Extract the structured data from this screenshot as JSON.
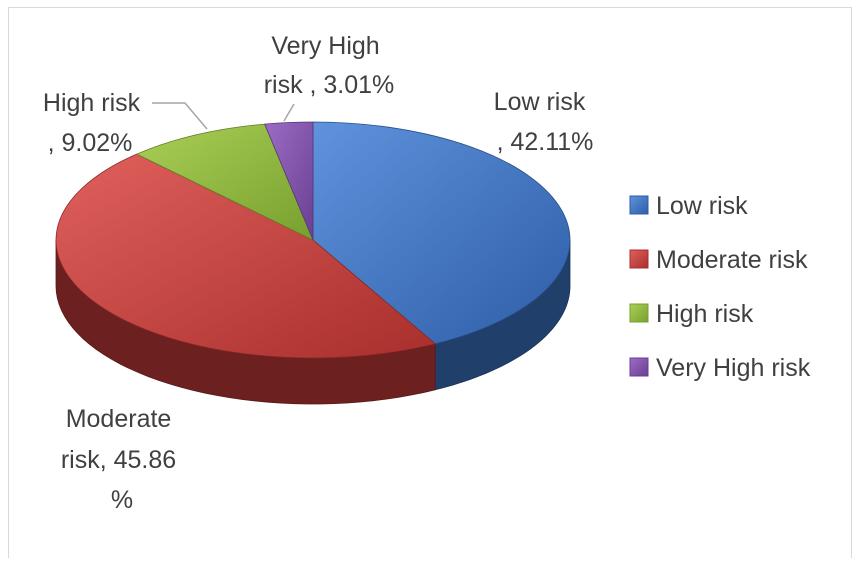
{
  "chart_data": {
    "type": "pie",
    "style": "3d",
    "categories": [
      "Low risk",
      "Moderate risk",
      "High risk",
      "Very High risk"
    ],
    "values": [
      42.11,
      45.86,
      9.02,
      3.01
    ],
    "unit": "%",
    "colors": [
      "#3a72c2",
      "#c43b38",
      "#8db63b",
      "#7d4fa5"
    ],
    "data_labels": [
      [
        "Low risk",
        ", 42.11%"
      ],
      [
        "Moderate",
        "risk, 45.86",
        "%"
      ],
      [
        "High risk",
        ", 9.02%"
      ],
      [
        "Very High",
        "risk , 3.01%"
      ]
    ],
    "legend": {
      "position": "right",
      "entries": [
        "Low risk",
        "Moderate risk",
        "High risk",
        "Very High risk"
      ]
    }
  }
}
